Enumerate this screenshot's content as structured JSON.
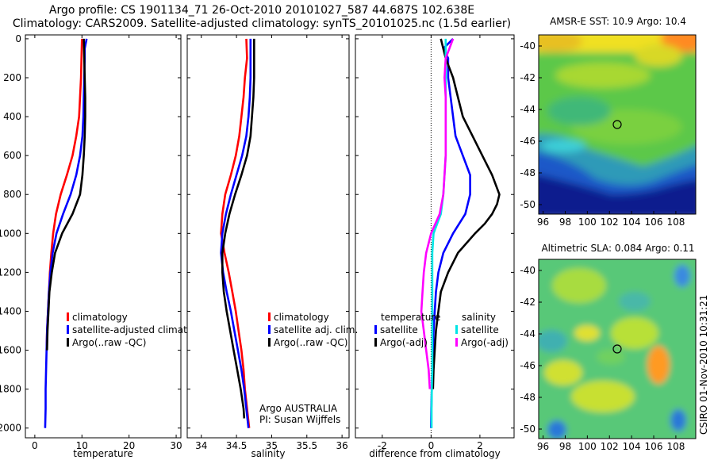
{
  "titles": {
    "line1": "Argo profile: CS 1901134_71 26-Oct-2010 20101027_587 44.687S 102.638E",
    "line2": "Climatology: CARS2009. Satellite-adjusted climatology: synTS_20101025.nc (1.5d earlier)"
  },
  "colors": {
    "climatology": "#ff0000",
    "satellite": "#0000ff",
    "argo": "#000000",
    "sal_satellite": "#00e5e5",
    "sal_argo": "#ff00ff"
  },
  "credits": {
    "line1": "Argo AUSTRALIA",
    "line2": "PI: Susan Wijffels",
    "vertical": "CSIRO 01-Nov-2010 10:31:21"
  },
  "legend_temp": {
    "climatology": "climatology",
    "satellite": "satellite-adjusted climatology",
    "argo": "Argo(..raw -QC)"
  },
  "legend_sal": {
    "climatology": "climatology",
    "satellite": "satellite adj. clim.",
    "argo": "Argo(..raw -QC)"
  },
  "legend_diff": {
    "temp_header": "temperature",
    "sal_header": "salinity",
    "temp_sat": "satellite",
    "temp_argo": "Argo(-adj)",
    "sal_sat": "satellite",
    "sal_argo": "Argo(-adj)"
  },
  "maps": {
    "sst_title": "AMSR-E SST: 10.9 Argo: 10.4",
    "sla_title": "Altimetric SLA: 0.084 Argo: 0.11",
    "xticks": [
      "96",
      "98",
      "100",
      "102",
      "104",
      "106",
      "108"
    ],
    "yticks": [
      "-40",
      "-42",
      "-44",
      "-46",
      "-48",
      "-50"
    ],
    "float_lon": 102.638,
    "float_lat": -44.687
  },
  "chart_data": [
    {
      "type": "line",
      "title": "",
      "xlabel": "temperature",
      "ylabel": "",
      "xlim": [
        -2,
        31
      ],
      "ylim": [
        2050,
        -20
      ],
      "xticks": [
        "0",
        "10",
        "20",
        "30"
      ],
      "yticks": [
        "0",
        "200",
        "400",
        "600",
        "800",
        "1000",
        "1200",
        "1400",
        "1600",
        "1800",
        "2000"
      ],
      "series": [
        {
          "name": "climatology",
          "color": "#ff0000",
          "depth": [
            0,
            100,
            200,
            300,
            400,
            500,
            600,
            700,
            800,
            900,
            1000,
            1100,
            1200,
            1300,
            1400,
            1500,
            1600
          ],
          "values": [
            10,
            9.9,
            9.8,
            9.6,
            9.4,
            8.8,
            8,
            6.8,
            5.5,
            4.5,
            3.9,
            3.5,
            3.2,
            3,
            2.8,
            2.6,
            2.5
          ]
        },
        {
          "name": "satellite-adjusted climatology",
          "color": "#0000ff",
          "depth": [
            0,
            50,
            100,
            200,
            300,
            400,
            500,
            600,
            700,
            800,
            900,
            1000,
            1100,
            1200,
            1300,
            1400,
            1500,
            1600,
            1700,
            1800,
            1900,
            2000
          ],
          "values": [
            11,
            10.6,
            10.6,
            10.5,
            10.4,
            10.3,
            10.1,
            9.6,
            8.8,
            7.6,
            6,
            4.6,
            3.8,
            3.3,
            3,
            2.8,
            2.6,
            2.5,
            2.4,
            2.3,
            2.3,
            2.2
          ]
        },
        {
          "name": "Argo(..raw -QC)",
          "color": "#000000",
          "depth": [
            0,
            100,
            200,
            300,
            400,
            500,
            600,
            700,
            800,
            900,
            1000,
            1100,
            1200,
            1300,
            1400,
            1500,
            1600
          ],
          "values": [
            10.4,
            10.5,
            10.6,
            10.7,
            10.7,
            10.6,
            10.4,
            10.1,
            9.6,
            8,
            5.8,
            4.3,
            3.6,
            3.1,
            2.9,
            2.7,
            2.6
          ]
        }
      ]
    },
    {
      "type": "line",
      "title": "",
      "xlabel": "salinity",
      "ylabel": "",
      "xlim": [
        33.8,
        36.1
      ],
      "ylim": [
        2050,
        -20
      ],
      "xticks": [
        "34",
        "34.5",
        "35",
        "35.5",
        "36"
      ],
      "series": [
        {
          "name": "climatology",
          "color": "#ff0000",
          "depth": [
            0,
            100,
            200,
            300,
            400,
            500,
            600,
            700,
            800,
            900,
            1000,
            1100,
            1200,
            1300,
            1400,
            1500,
            1600,
            1700,
            1800,
            1900,
            2000
          ],
          "values": [
            34.64,
            34.65,
            34.62,
            34.6,
            34.57,
            34.54,
            34.49,
            34.42,
            34.34,
            34.3,
            34.28,
            34.33,
            34.39,
            34.44,
            34.49,
            34.53,
            34.57,
            34.6,
            34.62,
            34.65,
            34.68
          ]
        },
        {
          "name": "satellite adj. clim.",
          "color": "#0000ff",
          "depth": [
            0,
            100,
            200,
            300,
            400,
            500,
            600,
            700,
            800,
            900,
            1000,
            1100,
            1200,
            1300,
            1400,
            1500,
            1600,
            1700,
            1800,
            1900,
            2000
          ],
          "values": [
            34.7,
            34.7,
            34.7,
            34.69,
            34.67,
            34.64,
            34.58,
            34.5,
            34.42,
            34.35,
            34.3,
            34.28,
            34.31,
            34.36,
            34.42,
            34.47,
            34.52,
            34.57,
            34.61,
            34.64,
            34.67
          ]
        },
        {
          "name": "Argo(..raw -QC)",
          "color": "#000000",
          "depth": [
            0,
            100,
            200,
            300,
            400,
            500,
            600,
            700,
            800,
            900,
            1000,
            1100,
            1200,
            1300,
            1400,
            1500,
            1600,
            1700,
            1800,
            1900,
            1950
          ],
          "values": [
            34.75,
            34.75,
            34.75,
            34.74,
            34.72,
            34.7,
            34.65,
            34.57,
            34.48,
            34.4,
            34.34,
            34.3,
            34.3,
            34.32,
            34.36,
            34.41,
            34.46,
            34.51,
            34.56,
            34.6,
            34.61
          ]
        }
      ]
    },
    {
      "type": "line",
      "title": "",
      "xlabel": "difference from climatology",
      "ylabel": "",
      "xlim": [
        -3.1,
        3.4
      ],
      "ylim": [
        2050,
        -20
      ],
      "xticks": [
        "-2",
        "0",
        "2"
      ],
      "series": [
        {
          "name": "temperature satellite",
          "color": "#0000ff",
          "depth": [
            0,
            50,
            100,
            200,
            300,
            400,
            500,
            600,
            700,
            800,
            900,
            1000,
            1100,
            1200,
            1300,
            1400,
            1500,
            1600,
            1700,
            1800,
            1900,
            2000
          ],
          "values": [
            0.9,
            0.5,
            0.7,
            0.7,
            0.8,
            0.9,
            1,
            1.3,
            1.6,
            1.6,
            1.4,
            0.9,
            0.5,
            0.3,
            0.2,
            0.15,
            0.1,
            0.08,
            0.05,
            0.03,
            0.01,
            0
          ]
        },
        {
          "name": "temperature Argo(-adj)",
          "color": "#000000",
          "depth": [
            0,
            100,
            200,
            300,
            400,
            500,
            600,
            700,
            800,
            850,
            900,
            950,
            1000,
            1100,
            1200,
            1300,
            1400,
            1500,
            1600,
            1700,
            1800
          ],
          "values": [
            0.4,
            0.6,
            0.9,
            1.1,
            1.3,
            1.7,
            2.1,
            2.5,
            2.8,
            2.7,
            2.5,
            2.2,
            1.8,
            1.1,
            0.7,
            0.4,
            0.3,
            0.2,
            0.15,
            0.1,
            0.08
          ]
        },
        {
          "name": "salinity satellite",
          "color": "#00e5e5",
          "depth": [
            0,
            100,
            200,
            300,
            400,
            500,
            600,
            700,
            800,
            900,
            1000,
            1100,
            1200,
            1300,
            1400,
            1500,
            1600,
            1700,
            1800,
            1900,
            2000
          ],
          "values": [
            0.6,
            0.6,
            0.6,
            0.6,
            0.6,
            0.6,
            0.6,
            0.55,
            0.5,
            0.4,
            0.1,
            0.05,
            0.05,
            0.05,
            0.05,
            0.05,
            0.05,
            0.05,
            0.03,
            0.02,
            0.02
          ]
        },
        {
          "name": "salinity Argo(-adj)",
          "color": "#ff00ff",
          "depth": [
            0,
            100,
            200,
            300,
            400,
            500,
            600,
            700,
            800,
            900,
            1000,
            1100,
            1200,
            1300,
            1400,
            1500,
            1600,
            1700,
            1800
          ],
          "values": [
            0.9,
            0.6,
            0.55,
            0.6,
            0.6,
            0.6,
            0.6,
            0.55,
            0.5,
            0.35,
            0,
            -0.2,
            -0.3,
            -0.35,
            -0.4,
            -0.3,
            -0.2,
            -0.1,
            -0.05
          ]
        }
      ]
    }
  ]
}
